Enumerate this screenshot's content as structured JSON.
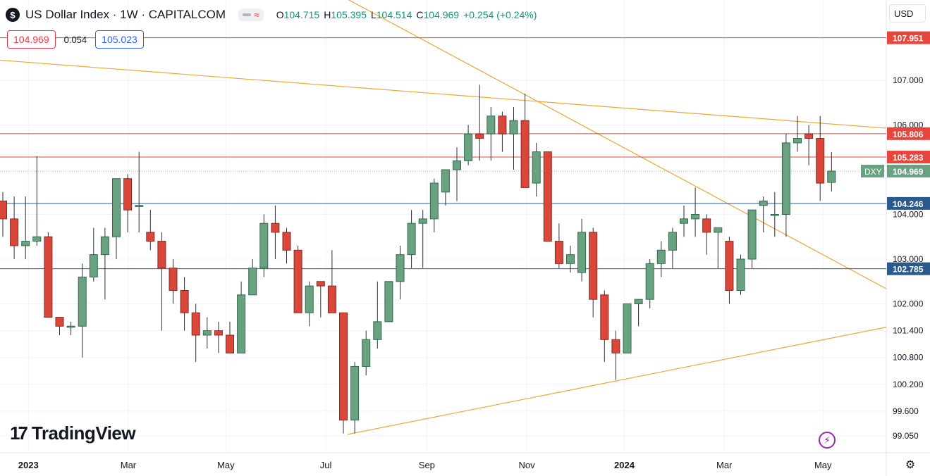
{
  "header": {
    "symbol_badge": "$",
    "title": "US Dollar Index · 1W · CAPITALCOM",
    "ohlc": {
      "o_label": "O",
      "o": "104.715",
      "h_label": "H",
      "h": "105.395",
      "l_label": "L",
      "l": "104.514",
      "c_label": "C",
      "c": "104.969",
      "change": "+0.254 (+0.24%)"
    }
  },
  "quote": {
    "bid": "104.969",
    "spread": "0.054",
    "ask": "105.023"
  },
  "currency": "USD",
  "branding": {
    "logo_text": "TradingView",
    "logo_mark": "17"
  },
  "colors": {
    "up": "#6aa281",
    "up_border": "#2f6b4a",
    "down": "#d9473a",
    "down_border": "#8a2a21",
    "hline_red": "#e8453c",
    "hline_blue": "#2a5a8c",
    "trend": "#eba732"
  },
  "icons": {
    "settings": "gear-icon",
    "replay": "lightning-icon",
    "dropdown": "chevron-down-icon"
  },
  "chart_data": {
    "type": "candlestick",
    "title": "US Dollar Index · 1W · CAPITALCOM",
    "ylim": [
      98.8,
      108.5
    ],
    "y_ticks": [
      107.0,
      106.0,
      104.0,
      103.0,
      102.0,
      101.4,
      100.8,
      100.2,
      99.6,
      99.05
    ],
    "y_tick_labels": [
      "107.000",
      "106.000",
      "104.000",
      "103.000",
      "102.000",
      "101.400",
      "100.800",
      "100.200",
      "99.600",
      "99.050"
    ],
    "x_labels": [
      {
        "label": "2023",
        "week": 2.5
      },
      {
        "label": "Mar",
        "week": 11.3
      },
      {
        "label": "May",
        "week": 19.9
      },
      {
        "label": "Jul",
        "week": 28.7
      },
      {
        "label": "Sep",
        "week": 37.6
      },
      {
        "label": "Nov",
        "week": 46.4
      },
      {
        "label": "2024",
        "week": 55.0
      },
      {
        "label": "Mar",
        "week": 63.8
      },
      {
        "label": "May",
        "week": 72.5
      }
    ],
    "price_levels": [
      {
        "value": 107.951,
        "label": "107.951",
        "color": "red"
      },
      {
        "value": 105.806,
        "label": "105.806",
        "color": "red"
      },
      {
        "value": 105.283,
        "label": "105.283",
        "color": "red"
      },
      {
        "value": 104.246,
        "label": "104.246",
        "color": "blue"
      },
      {
        "value": 102.785,
        "label": "102.785",
        "color": "blue"
      }
    ],
    "current": {
      "value": 104.969,
      "symbol": "DXY",
      "label": "104.969"
    },
    "trend_lines": [
      {
        "from": [
          0,
          107.45
        ],
        "to": [
          78.5,
          105.92
        ]
      },
      {
        "from": [
          28.5,
          109.1
        ],
        "to": [
          78.5,
          102.28
        ]
      },
      {
        "from": [
          30.6,
          99.08
        ],
        "to": [
          78.5,
          101.5
        ]
      }
    ],
    "candles": [
      {
        "o": 104.3,
        "h": 104.5,
        "l": 103.5,
        "c": 103.9
      },
      {
        "o": 103.9,
        "h": 104.4,
        "l": 103.0,
        "c": 103.3
      },
      {
        "o": 103.3,
        "h": 104.4,
        "l": 103.0,
        "c": 103.4
      },
      {
        "o": 103.4,
        "h": 105.3,
        "l": 103.3,
        "c": 103.5
      },
      {
        "o": 103.5,
        "h": 103.6,
        "l": 101.7,
        "c": 101.7
      },
      {
        "o": 101.7,
        "h": 101.7,
        "l": 101.3,
        "c": 101.5
      },
      {
        "o": 101.5,
        "h": 101.6,
        "l": 101.3,
        "c": 101.5
      },
      {
        "o": 101.5,
        "h": 102.9,
        "l": 100.8,
        "c": 102.6
      },
      {
        "o": 102.6,
        "h": 103.7,
        "l": 102.5,
        "c": 103.1
      },
      {
        "o": 103.1,
        "h": 103.7,
        "l": 102.1,
        "c": 103.5
      },
      {
        "o": 103.5,
        "h": 104.8,
        "l": 103.0,
        "c": 104.8
      },
      {
        "o": 104.8,
        "h": 104.9,
        "l": 103.6,
        "c": 104.1
      },
      {
        "o": 104.2,
        "h": 105.4,
        "l": 103.6,
        "c": 104.2
      },
      {
        "o": 103.6,
        "h": 104.1,
        "l": 103.2,
        "c": 103.4
      },
      {
        "o": 103.4,
        "h": 103.6,
        "l": 101.4,
        "c": 102.8
      },
      {
        "o": 102.8,
        "h": 103.0,
        "l": 102.0,
        "c": 102.3
      },
      {
        "o": 102.3,
        "h": 102.6,
        "l": 101.4,
        "c": 101.8
      },
      {
        "o": 101.8,
        "h": 102.0,
        "l": 100.7,
        "c": 101.3
      },
      {
        "o": 101.3,
        "h": 101.7,
        "l": 101.0,
        "c": 101.4
      },
      {
        "o": 101.4,
        "h": 101.6,
        "l": 100.9,
        "c": 101.3
      },
      {
        "o": 101.3,
        "h": 101.6,
        "l": 100.9,
        "c": 100.9
      },
      {
        "o": 100.9,
        "h": 102.5,
        "l": 100.9,
        "c": 102.2
      },
      {
        "o": 102.2,
        "h": 103.0,
        "l": 102.2,
        "c": 102.8
      },
      {
        "o": 102.8,
        "h": 104.0,
        "l": 102.6,
        "c": 103.8
      },
      {
        "o": 103.8,
        "h": 104.2,
        "l": 103.0,
        "c": 103.6
      },
      {
        "o": 103.6,
        "h": 103.7,
        "l": 102.9,
        "c": 103.2
      },
      {
        "o": 103.2,
        "h": 103.3,
        "l": 101.8,
        "c": 101.8
      },
      {
        "o": 101.8,
        "h": 102.5,
        "l": 101.5,
        "c": 102.4
      },
      {
        "o": 102.5,
        "h": 102.5,
        "l": 101.7,
        "c": 102.4
      },
      {
        "o": 102.4,
        "h": 103.2,
        "l": 101.8,
        "c": 101.8
      },
      {
        "o": 101.8,
        "h": 101.8,
        "l": 99.1,
        "c": 99.4
      },
      {
        "o": 99.4,
        "h": 100.7,
        "l": 99.1,
        "c": 100.6
      },
      {
        "o": 100.6,
        "h": 101.4,
        "l": 100.4,
        "c": 101.2
      },
      {
        "o": 101.2,
        "h": 102.5,
        "l": 101.0,
        "c": 101.6
      },
      {
        "o": 101.6,
        "h": 102.5,
        "l": 101.6,
        "c": 102.5
      },
      {
        "o": 102.5,
        "h": 103.3,
        "l": 102.1,
        "c": 103.1
      },
      {
        "o": 103.1,
        "h": 104.1,
        "l": 102.8,
        "c": 103.8
      },
      {
        "o": 103.8,
        "h": 104.1,
        "l": 102.8,
        "c": 103.9
      },
      {
        "o": 103.9,
        "h": 104.8,
        "l": 103.6,
        "c": 104.7
      },
      {
        "o": 104.5,
        "h": 105.0,
        "l": 104.2,
        "c": 105.0
      },
      {
        "o": 105.0,
        "h": 105.5,
        "l": 104.3,
        "c": 105.2
      },
      {
        "o": 105.2,
        "h": 106.0,
        "l": 105.1,
        "c": 105.8
      },
      {
        "o": 105.8,
        "h": 106.9,
        "l": 105.2,
        "c": 105.7
      },
      {
        "o": 105.8,
        "h": 106.4,
        "l": 105.2,
        "c": 106.2
      },
      {
        "o": 106.2,
        "h": 106.3,
        "l": 105.4,
        "c": 105.8
      },
      {
        "o": 105.8,
        "h": 106.4,
        "l": 105.0,
        "c": 106.1
      },
      {
        "o": 106.1,
        "h": 106.7,
        "l": 104.6,
        "c": 104.6
      },
      {
        "o": 104.7,
        "h": 105.6,
        "l": 104.4,
        "c": 105.4
      },
      {
        "o": 105.4,
        "h": 105.4,
        "l": 103.4,
        "c": 103.4
      },
      {
        "o": 103.4,
        "h": 103.8,
        "l": 102.8,
        "c": 102.9
      },
      {
        "o": 102.9,
        "h": 103.3,
        "l": 102.7,
        "c": 103.1
      },
      {
        "o": 102.7,
        "h": 103.9,
        "l": 102.5,
        "c": 103.6
      },
      {
        "o": 103.6,
        "h": 103.7,
        "l": 101.7,
        "c": 102.1
      },
      {
        "o": 102.2,
        "h": 102.3,
        "l": 100.7,
        "c": 101.2
      },
      {
        "o": 101.2,
        "h": 101.4,
        "l": 100.3,
        "c": 100.9
      },
      {
        "o": 100.9,
        "h": 102.0,
        "l": 100.9,
        "c": 102.0
      },
      {
        "o": 102.0,
        "h": 102.1,
        "l": 101.5,
        "c": 102.1
      },
      {
        "o": 102.1,
        "h": 103.0,
        "l": 101.9,
        "c": 102.9
      },
      {
        "o": 102.9,
        "h": 103.4,
        "l": 102.6,
        "c": 103.2
      },
      {
        "o": 103.2,
        "h": 103.7,
        "l": 102.8,
        "c": 103.6
      },
      {
        "o": 103.8,
        "h": 104.2,
        "l": 103.5,
        "c": 103.9
      },
      {
        "o": 103.9,
        "h": 104.6,
        "l": 103.5,
        "c": 104.0
      },
      {
        "o": 103.9,
        "h": 104.0,
        "l": 103.1,
        "c": 103.6
      },
      {
        "o": 103.6,
        "h": 103.7,
        "l": 102.8,
        "c": 103.7
      },
      {
        "o": 103.4,
        "h": 103.5,
        "l": 102.0,
        "c": 102.3
      },
      {
        "o": 102.3,
        "h": 103.1,
        "l": 102.2,
        "c": 103.0
      },
      {
        "o": 103.0,
        "h": 104.1,
        "l": 102.8,
        "c": 104.1
      },
      {
        "o": 104.2,
        "h": 104.4,
        "l": 103.6,
        "c": 104.3
      },
      {
        "o": 104.0,
        "h": 104.5,
        "l": 103.5,
        "c": 104.0
      },
      {
        "o": 104.0,
        "h": 105.8,
        "l": 103.5,
        "c": 105.6
      },
      {
        "o": 105.6,
        "h": 106.2,
        "l": 105.4,
        "c": 105.7
      },
      {
        "o": 105.8,
        "h": 106.0,
        "l": 105.1,
        "c": 105.7
      },
      {
        "o": 105.7,
        "h": 106.2,
        "l": 104.3,
        "c": 104.7
      },
      {
        "o": 104.715,
        "h": 105.395,
        "l": 104.514,
        "c": 104.969
      }
    ]
  }
}
